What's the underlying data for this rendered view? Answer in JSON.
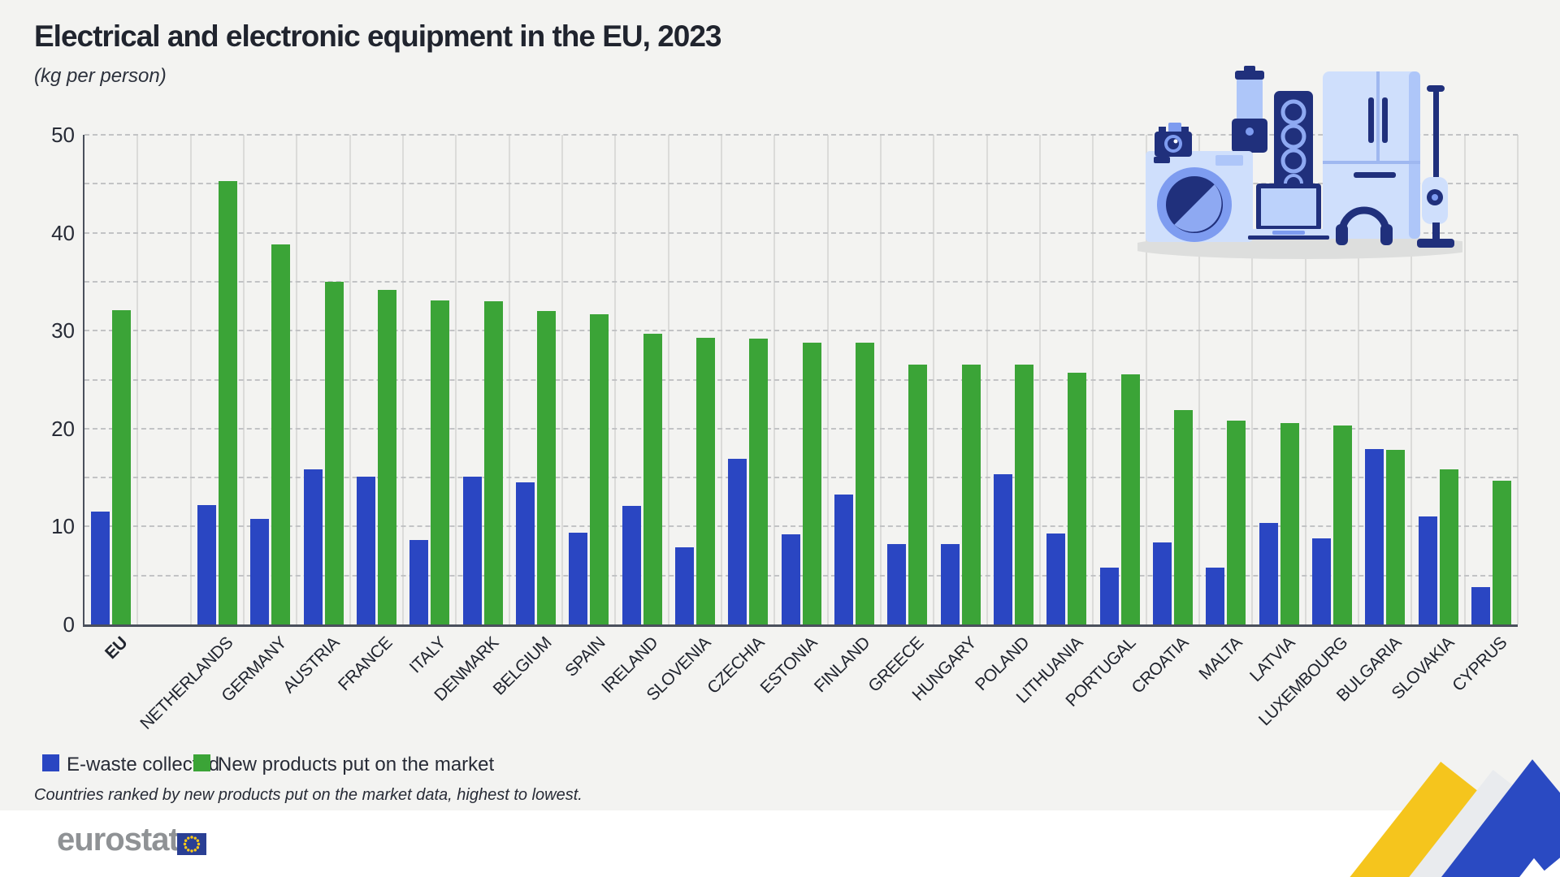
{
  "title": "Electrical and electronic equipment in the EU, 2023",
  "subtitle": "(kg per person)",
  "legend": {
    "ewaste": "E-waste collected",
    "new_products": "New products put on the market"
  },
  "footnote": "Countries ranked by new products put on the market data, highest to lowest.",
  "logo": {
    "text": "eurostat"
  },
  "colors": {
    "ewaste_blue": "#2a46c2",
    "products_green": "#3ba437",
    "text_dark": "#272b36",
    "background": "#f3f3f1",
    "ribbon_yellow": "#f5c51d",
    "ribbon_blue": "#2a4ac2",
    "logo_gray": "#8f9295",
    "flag_blue": "#2a3f94",
    "flag_star_yellow": "#fecb17"
  },
  "icons": {
    "illustration": "appliances-icons (washing-machine, camera, blender, speaker, laptop, fridge, headphones, vacuum)",
    "ribbon": "decorative-chevron-ribbon"
  },
  "chart_data": {
    "type": "bar",
    "title": "Electrical and electronic equipment in the EU, 2023",
    "ylabel": "(kg per person)",
    "ylim": [
      0,
      50
    ],
    "y_ticks": [
      0,
      10,
      20,
      30,
      40,
      50
    ],
    "grid": "horizontal dashed every 5, vertical solid per category",
    "legend_position": "bottom-left",
    "gap_after_first": true,
    "categories": [
      "EU",
      "NETHERLANDS",
      "GERMANY",
      "AUSTRIA",
      "FRANCE",
      "ITALY",
      "DENMARK",
      "BELGIUM",
      "SPAIN",
      "IRELAND",
      "SLOVENIA",
      "CZECHIA",
      "ESTONIA",
      "FINLAND",
      "GREECE",
      "HUNGARY",
      "POLAND",
      "LITHUANIA",
      "PORTUGAL",
      "CROATIA",
      "MALTA",
      "LATVIA",
      "LUXEMBOURG",
      "BULGARIA",
      "SLOVAKIA",
      "CYPRUS"
    ],
    "series": [
      {
        "name": "E-waste collected",
        "color": "#2a46c2",
        "values": [
          11.5,
          12.2,
          10.8,
          15.8,
          15.1,
          8.6,
          15.1,
          14.5,
          9.4,
          12.1,
          7.9,
          16.9,
          9.2,
          13.3,
          8.2,
          8.2,
          15.3,
          9.3,
          5.8,
          8.4,
          5.8,
          10.4,
          8.8,
          17.9,
          11.0,
          3.8
        ]
      },
      {
        "name": "New products put on the market",
        "color": "#3ba437",
        "values": [
          32.1,
          45.3,
          38.8,
          35.0,
          34.2,
          33.1,
          33.0,
          32.0,
          31.7,
          29.7,
          29.3,
          29.2,
          28.8,
          28.8,
          26.5,
          26.5,
          26.5,
          25.7,
          25.5,
          21.9,
          20.8,
          20.6,
          20.3,
          17.8,
          15.8,
          14.7
        ]
      }
    ]
  }
}
